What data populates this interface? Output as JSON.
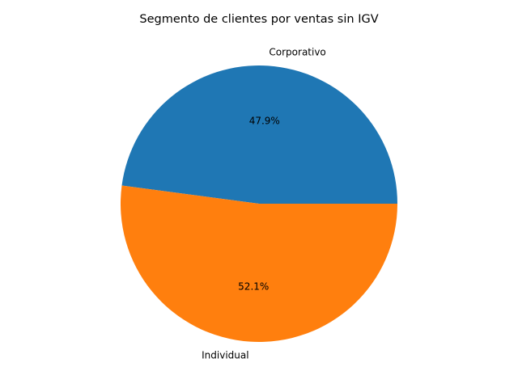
{
  "chart_data": {
    "type": "pie",
    "title": "Segmento de clientes por ventas sin IGV",
    "categories": [
      "Corporativo",
      "Individual"
    ],
    "values": [
      47.9,
      52.1
    ],
    "percent_labels": [
      "47.9%",
      "52.1%"
    ],
    "colors": [
      "#1f77b4",
      "#ff7f0e"
    ],
    "start_angle": 0,
    "direction": "counterclockwise",
    "legend": "none"
  }
}
